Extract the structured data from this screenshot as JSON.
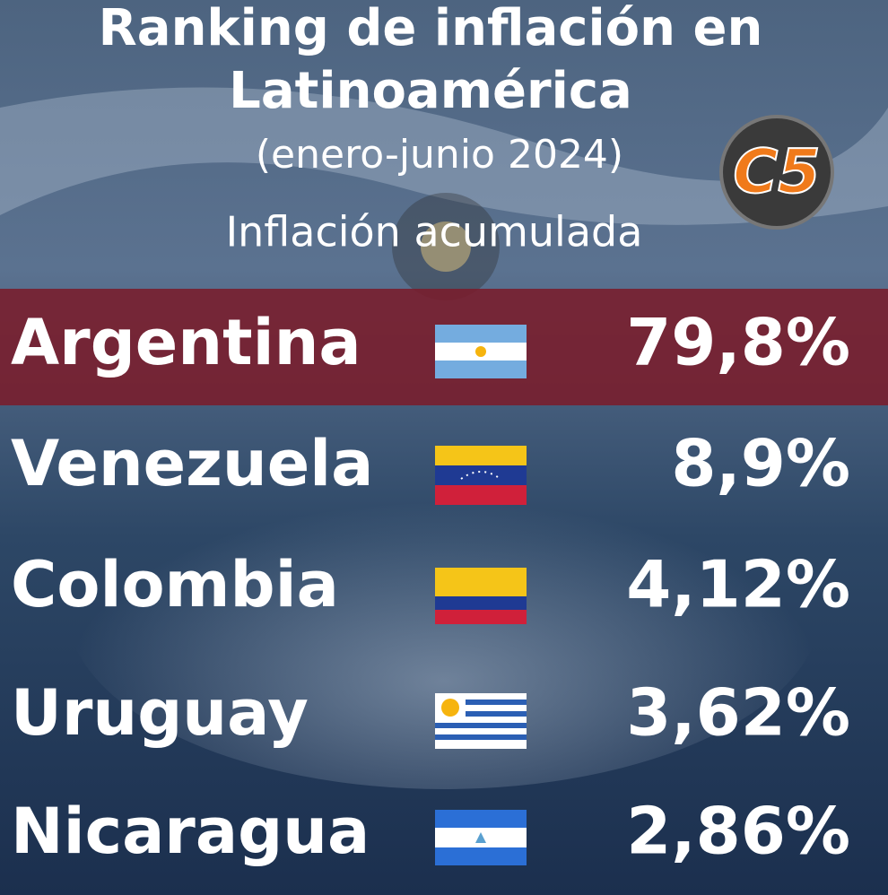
{
  "header": {
    "title_lines": [
      "Ranking de inflación en",
      "Latinoamérica"
    ],
    "subtitle": "(enero-junio 2024)",
    "caption": "Inflación acumulada",
    "logo": "C5"
  },
  "rows": [
    {
      "country": "Argentina",
      "value": "79,8%"
    },
    {
      "country": "Venezuela",
      "value": "8,9%"
    },
    {
      "country": "Colombia",
      "value": "4,12%"
    },
    {
      "country": "Uruguay",
      "value": "3,62%"
    },
    {
      "country": "Nicaragua",
      "value": "2,86%"
    }
  ]
}
